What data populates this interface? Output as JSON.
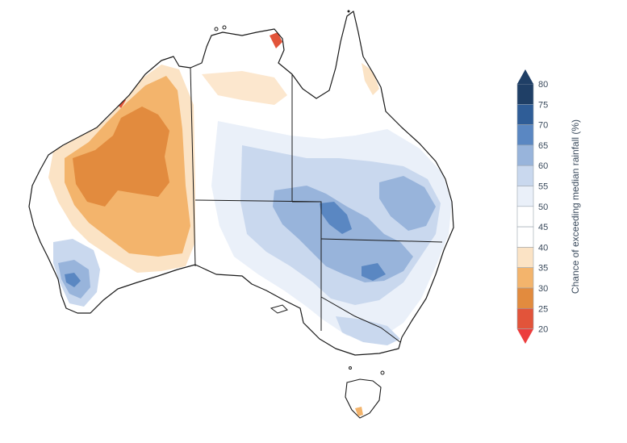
{
  "legend": {
    "title": "Chance of exceeding median rainfall (%)",
    "ticks": [
      "80",
      "75",
      "70",
      "65",
      "60",
      "55",
      "50",
      "45",
      "40",
      "35",
      "30",
      "25",
      "20"
    ],
    "bins": [
      {
        "range": "75-80",
        "color": "#1f3f66"
      },
      {
        "range": "70-75",
        "color": "#2f5d97"
      },
      {
        "range": "65-70",
        "color": "#5a87c2"
      },
      {
        "range": "60-65",
        "color": "#98b4db"
      },
      {
        "range": "55-60",
        "color": "#c9d8ee"
      },
      {
        "range": "50-55",
        "color": "#eaf0f9"
      },
      {
        "range": "45-50",
        "color": "#ffffff"
      },
      {
        "range": "40-45",
        "color": "#ffffff"
      },
      {
        "range": "35-40",
        "color": "#fbe3c5"
      },
      {
        "range": "30-35",
        "color": "#f3b46c"
      },
      {
        "range": "25-30",
        "color": "#e28b3e"
      },
      {
        "range": "20-25",
        "color": "#e2543a"
      }
    ],
    "over_color": "#1f3f66",
    "under_color": "#ec3d3d"
  },
  "map": {
    "land_color": "#ffffff",
    "border_color": "#1a1a1a"
  }
}
